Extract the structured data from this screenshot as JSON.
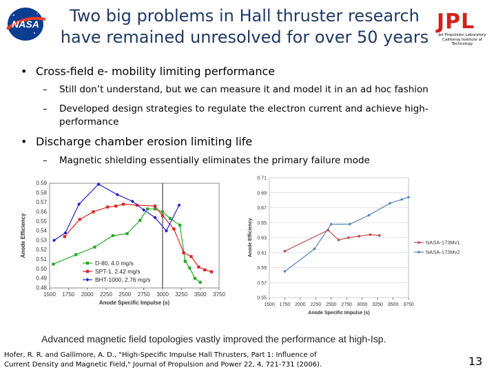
{
  "slide": {
    "title_line1": "Two big problems in Hall thruster research",
    "title_line2": "have remained unresolved for over 50 years",
    "logos": {
      "left": "nasa-logo",
      "left_text": "NASA",
      "right_text": "JPL",
      "right_sub1": "Jet Propulsion Laboratory",
      "right_sub2": "California Institute of Technology"
    },
    "bullets": [
      {
        "text": "Cross-field e- mobility limiting performance",
        "subs": [
          "Still don’t understand, but we can measure it and model it in an ad hoc fashion",
          "Developed design strategies to regulate the electron current and achieve high-performance"
        ]
      },
      {
        "text": "Discharge chamber erosion limiting life",
        "subs": [
          "Magnetic shielding essentially eliminates the primary failure mode"
        ]
      }
    ],
    "caption": "Advanced magnetic field topologies vastly improved the performance at high-Isp.",
    "reference_line1": "Hofer, R. R. and Gallimore, A. D., \"High-Specific Impulse Hall Thrusters, Part 1: Influence of",
    "reference_line2": "Current Density and Magnetic Field,\" Journal of Propulsion and Power 22, 4, 721-731 (2006).",
    "page_number": "13"
  },
  "chart_data": [
    {
      "type": "line",
      "xlabel": "Anode Specific Impulse (s)",
      "ylabel": "Anode Efficiency",
      "xlim": [
        1500,
        3750
      ],
      "ylim": [
        0.48,
        0.59
      ],
      "x_ticks": [
        "1500",
        "1750",
        "2000",
        "2250",
        "2500",
        "2750",
        "3000",
        "3250",
        "3500",
        "3750"
      ],
      "y_ticks": [
        "0.48",
        "0.49",
        "0.50",
        "0.51",
        "0.52",
        "0.53",
        "0.54",
        "0.55",
        "0.56",
        "0.57",
        "0.58",
        "0.59"
      ],
      "vline_x": 3000,
      "legend_position": "bottom-left",
      "series": [
        {
          "name": "D-80, 4.0 mg/s",
          "color": "#22aa22",
          "marker": "square",
          "points": [
            [
              1550,
              0.505
            ],
            [
              1850,
              0.515
            ],
            [
              2100,
              0.523
            ],
            [
              2340,
              0.535
            ],
            [
              2530,
              0.537
            ],
            [
              2700,
              0.551
            ],
            [
              2800,
              0.563
            ],
            [
              2900,
              0.563
            ],
            [
              3000,
              0.56
            ],
            [
              3100,
              0.553
            ],
            [
              3230,
              0.546
            ],
            [
              3300,
              0.508
            ],
            [
              3360,
              0.501
            ],
            [
              3430,
              0.49
            ],
            [
              3500,
              0.486
            ]
          ]
        },
        {
          "name": "SPT-1, 2.42 mg/s",
          "color": "#dd2222",
          "marker": "square",
          "points": [
            [
              1700,
              0.534
            ],
            [
              1900,
              0.552
            ],
            [
              2080,
              0.56
            ],
            [
              2270,
              0.565
            ],
            [
              2380,
              0.566
            ],
            [
              2480,
              0.568
            ],
            [
              2660,
              0.567
            ],
            [
              2900,
              0.566
            ],
            [
              3000,
              0.556
            ],
            [
              3150,
              0.542
            ],
            [
              3280,
              0.517
            ],
            [
              3380,
              0.513
            ],
            [
              3480,
              0.502
            ],
            [
              3560,
              0.499
            ],
            [
              3650,
              0.497
            ]
          ]
        },
        {
          "name": "BHT-1000, 2.76 mg/s",
          "color": "#2222cc",
          "marker": "diamond",
          "points": [
            [
              1560,
              0.53
            ],
            [
              1710,
              0.538
            ],
            [
              1890,
              0.568
            ],
            [
              2150,
              0.589
            ],
            [
              2400,
              0.578
            ],
            [
              2600,
              0.571
            ],
            [
              2750,
              0.562
            ],
            [
              2900,
              0.554
            ],
            [
              3050,
              0.54
            ],
            [
              3220,
              0.567
            ]
          ]
        }
      ]
    },
    {
      "type": "line",
      "xlabel": "Anode Specific Impulse (s)",
      "ylabel": "Anode Efficiency",
      "xlim": [
        1500,
        3750
      ],
      "ylim": [
        0.55,
        0.71
      ],
      "x_ticks": [
        "1500",
        "1750",
        "2000",
        "2250",
        "2500",
        "2750",
        "3000",
        "3250",
        "3500",
        "3750"
      ],
      "y_ticks": [
        "0.55",
        "0.57",
        "0.59",
        "0.61",
        "0.63",
        "0.65",
        "0.67",
        "0.69",
        "0.71"
      ],
      "legend_position": "right",
      "series": [
        {
          "name": "NASA-173Mv1",
          "color": "#c0504d",
          "marker": "square",
          "points": [
            [
              1750,
              0.612
            ],
            [
              2450,
              0.64
            ],
            [
              2620,
              0.627
            ],
            [
              2780,
              0.63
            ],
            [
              2950,
              0.632
            ],
            [
              3130,
              0.634
            ],
            [
              3280,
              0.633
            ]
          ]
        },
        {
          "name": "NASA-173Mv2",
          "color": "#4f81bd",
          "marker": "diamond",
          "points": [
            [
              1750,
              0.585
            ],
            [
              2230,
              0.615
            ],
            [
              2500,
              0.648
            ],
            [
              2800,
              0.648
            ],
            [
              3110,
              0.66
            ],
            [
              3450,
              0.676
            ],
            [
              3640,
              0.681
            ],
            [
              3750,
              0.684
            ]
          ]
        }
      ]
    }
  ]
}
